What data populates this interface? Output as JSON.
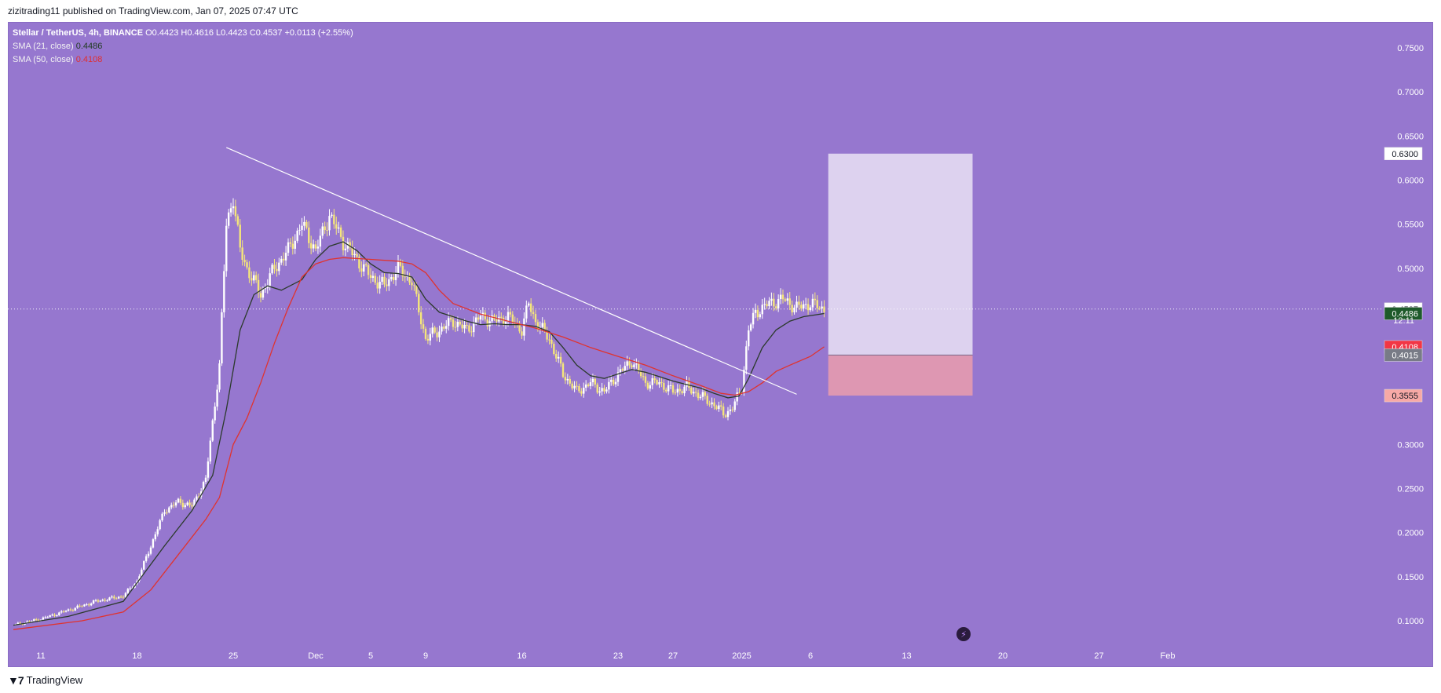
{
  "header": {
    "published_text": "zizitrading11 published on TradingView.com, Jan 07, 2025 07:47 UTC"
  },
  "legend": {
    "symbol": "Stellar / TetherUS, 4h, BINANCE",
    "ohlc": "O0.4423 H0.4616 L0.4423 C0.4537 +0.0113 (+2.55%)",
    "sma21_label": "SMA (21, close)",
    "sma21_value": "0.4486",
    "sma50_label": "SMA (50, close)",
    "sma50_value": "0.4108"
  },
  "footer": {
    "logo_text": "TradingView"
  },
  "chart_data": {
    "type": "line",
    "title": "Stellar / TetherUS, 4h, BINANCE",
    "ylim": [
      0.08,
      0.77
    ],
    "y_ticks": [
      "0.7500",
      "0.7000",
      "0.6500",
      "0.6000",
      "0.5500",
      "0.5000",
      "0.3000",
      "0.2500",
      "0.2000",
      "0.1500",
      "0.1000"
    ],
    "x_ticks": [
      {
        "label": "11",
        "day": 0
      },
      {
        "label": "18",
        "day": 7
      },
      {
        "label": "25",
        "day": 14
      },
      {
        "label": "Dec",
        "day": 20
      },
      {
        "label": "5",
        "day": 24
      },
      {
        "label": "9",
        "day": 28
      },
      {
        "label": "16",
        "day": 35
      },
      {
        "label": "23",
        "day": 42
      },
      {
        "label": "27",
        "day": 46
      },
      {
        "label": "2025",
        "day": 51
      },
      {
        "label": "6",
        "day": 56
      },
      {
        "label": "13",
        "day": 63
      },
      {
        "label": "20",
        "day": 70
      },
      {
        "label": "27",
        "day": 77
      },
      {
        "label": "Feb",
        "day": 82
      }
    ],
    "price_series": {
      "name": "XLMUSDT close (approx.)",
      "points": [
        [
          -2,
          0.095
        ],
        [
          0,
          0.102
        ],
        [
          2,
          0.112
        ],
        [
          4,
          0.122
        ],
        [
          6,
          0.128
        ],
        [
          7,
          0.145
        ],
        [
          8,
          0.185
        ],
        [
          9,
          0.225
        ],
        [
          10,
          0.235
        ],
        [
          11,
          0.23
        ],
        [
          12,
          0.26
        ],
        [
          13,
          0.39
        ],
        [
          13.5,
          0.55
        ],
        [
          14,
          0.58
        ],
        [
          14.5,
          0.52
        ],
        [
          15,
          0.5
        ],
        [
          16,
          0.47
        ],
        [
          17,
          0.5
        ],
        [
          18,
          0.52
        ],
        [
          19,
          0.55
        ],
        [
          20,
          0.52
        ],
        [
          21,
          0.56
        ],
        [
          22,
          0.53
        ],
        [
          23,
          0.51
        ],
        [
          24,
          0.49
        ],
        [
          25,
          0.48
        ],
        [
          26,
          0.5
        ],
        [
          27,
          0.485
        ],
        [
          28,
          0.42
        ],
        [
          29,
          0.43
        ],
        [
          30,
          0.44
        ],
        [
          31,
          0.43
        ],
        [
          32,
          0.445
        ],
        [
          33,
          0.44
        ],
        [
          34,
          0.445
        ],
        [
          35,
          0.43
        ],
        [
          35.5,
          0.46
        ],
        [
          36,
          0.44
        ],
        [
          37,
          0.42
        ],
        [
          38,
          0.38
        ],
        [
          39,
          0.36
        ],
        [
          40,
          0.37
        ],
        [
          41,
          0.36
        ],
        [
          42,
          0.38
        ],
        [
          43,
          0.395
        ],
        [
          44,
          0.37
        ],
        [
          45,
          0.37
        ],
        [
          46,
          0.36
        ],
        [
          47,
          0.365
        ],
        [
          48,
          0.355
        ],
        [
          49,
          0.345
        ],
        [
          49.7,
          0.335
        ],
        [
          50.3,
          0.34
        ],
        [
          51,
          0.365
        ],
        [
          51.5,
          0.43
        ],
        [
          52,
          0.45
        ],
        [
          53,
          0.46
        ],
        [
          54,
          0.465
        ],
        [
          55,
          0.455
        ],
        [
          56,
          0.46
        ],
        [
          57,
          0.4537
        ]
      ]
    },
    "series": [
      {
        "name": "SMA (21, close)",
        "color": "#2b3a2b",
        "points": [
          [
            -2,
            0.095
          ],
          [
            2,
            0.105
          ],
          [
            6,
            0.122
          ],
          [
            9,
            0.185
          ],
          [
            11,
            0.225
          ],
          [
            12.5,
            0.265
          ],
          [
            13.5,
            0.34
          ],
          [
            14.5,
            0.43
          ],
          [
            15.5,
            0.47
          ],
          [
            16.5,
            0.48
          ],
          [
            17.5,
            0.475
          ],
          [
            19,
            0.487
          ],
          [
            20,
            0.51
          ],
          [
            21,
            0.525
          ],
          [
            22,
            0.53
          ],
          [
            23,
            0.52
          ],
          [
            24,
            0.505
          ],
          [
            25,
            0.495
          ],
          [
            26,
            0.494
          ],
          [
            27,
            0.49
          ],
          [
            28,
            0.465
          ],
          [
            29,
            0.45
          ],
          [
            30,
            0.445
          ],
          [
            31,
            0.44
          ],
          [
            32,
            0.436
          ],
          [
            33,
            0.437
          ],
          [
            34,
            0.436
          ],
          [
            35,
            0.436
          ],
          [
            36,
            0.434
          ],
          [
            37,
            0.428
          ],
          [
            38,
            0.41
          ],
          [
            39,
            0.39
          ],
          [
            40,
            0.378
          ],
          [
            41,
            0.375
          ],
          [
            42,
            0.38
          ],
          [
            43,
            0.385
          ],
          [
            44,
            0.382
          ],
          [
            45,
            0.377
          ],
          [
            46,
            0.372
          ],
          [
            47,
            0.368
          ],
          [
            48,
            0.364
          ],
          [
            49,
            0.358
          ],
          [
            50,
            0.353
          ],
          [
            50.8,
            0.355
          ],
          [
            51.5,
            0.375
          ],
          [
            52.5,
            0.41
          ],
          [
            53.5,
            0.43
          ],
          [
            54.5,
            0.44
          ],
          [
            55.5,
            0.445
          ],
          [
            57,
            0.4486
          ]
        ]
      },
      {
        "name": "SMA (50, close)",
        "color": "#e0332f",
        "points": [
          [
            -2,
            0.09
          ],
          [
            3,
            0.1
          ],
          [
            6,
            0.11
          ],
          [
            8,
            0.135
          ],
          [
            10,
            0.175
          ],
          [
            12,
            0.215
          ],
          [
            13,
            0.24
          ],
          [
            14,
            0.3
          ],
          [
            15,
            0.33
          ],
          [
            16,
            0.37
          ],
          [
            17,
            0.415
          ],
          [
            18,
            0.455
          ],
          [
            19,
            0.49
          ],
          [
            20,
            0.505
          ],
          [
            21,
            0.51
          ],
          [
            22,
            0.512
          ],
          [
            24,
            0.51
          ],
          [
            26,
            0.508
          ],
          [
            27,
            0.505
          ],
          [
            28,
            0.495
          ],
          [
            29,
            0.475
          ],
          [
            30,
            0.46
          ],
          [
            32,
            0.448
          ],
          [
            34,
            0.44
          ],
          [
            36,
            0.432
          ],
          [
            38,
            0.422
          ],
          [
            40,
            0.41
          ],
          [
            42,
            0.4
          ],
          [
            44,
            0.39
          ],
          [
            46,
            0.378
          ],
          [
            48,
            0.367
          ],
          [
            49.5,
            0.358
          ],
          [
            50.5,
            0.356
          ],
          [
            51.5,
            0.36
          ],
          [
            52.5,
            0.37
          ],
          [
            53.5,
            0.383
          ],
          [
            54.5,
            0.39
          ],
          [
            56,
            0.4
          ],
          [
            57,
            0.4108
          ]
        ]
      }
    ],
    "trendline": {
      "name": "Descending trendline",
      "from": [
        13.5,
        0.637
      ],
      "to": [
        55,
        0.357
      ]
    },
    "position_tool": {
      "entry": 0.4015,
      "take_profit": 0.63,
      "stop_loss": 0.3555,
      "start_day": 57.3,
      "end_day": 67.8,
      "profit_color": "#ddd2ef",
      "loss_color": "#de97b2"
    },
    "price_labels": [
      {
        "value": 0.63,
        "text": "0.6300",
        "bg": "#ffffff",
        "fg": "#131722"
      },
      {
        "value": 0.4537,
        "text": "0.4537",
        "bg": "#ffffff",
        "fg": "#131722"
      },
      {
        "value": 0.4486,
        "text": "0.4486",
        "bg": "#1e5a2a",
        "fg": "#ffffff"
      },
      {
        "value": 0.4108,
        "text": "0.4108",
        "bg": "#f23645",
        "fg": "#ffffff"
      },
      {
        "value": 0.4015,
        "text": "0.4015",
        "bg": "#787b86",
        "fg": "#ffffff"
      },
      {
        "value": 0.3555,
        "text": "0.3555",
        "bg": "#f7a9a6",
        "fg": "#131722"
      }
    ],
    "countdown": "12:11",
    "last_price": 0.4537,
    "grid": false,
    "line_color": "#ffffff",
    "candle_up_color": "#ffffff",
    "candle_down_color": "#f5e67a"
  }
}
